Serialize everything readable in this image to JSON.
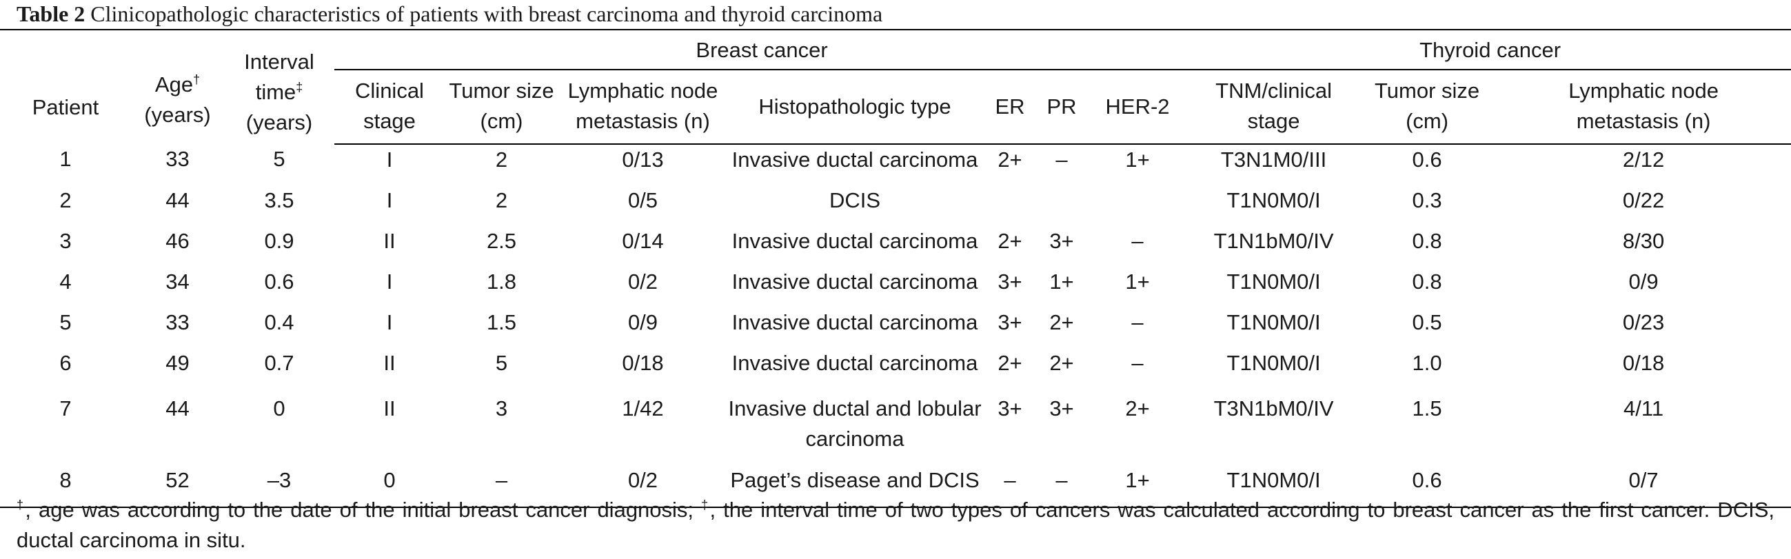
{
  "caption": {
    "label": "Table 2",
    "text": "Clinicopathologic characteristics of patients with breast carcinoma and thyroid carcinoma"
  },
  "headers": {
    "patient": "Patient",
    "age_line1": "Age",
    "age_sup": "†",
    "age_line2": "(years)",
    "interval_line1": "Interval",
    "interval_line2": "time",
    "interval_sup": "‡",
    "interval_line3": "(years)",
    "breast_group": "Breast cancer",
    "thyroid_group": "Thyroid cancer",
    "b_stage_1": "Clinical",
    "b_stage_2": "stage",
    "b_size_1": "Tumor size",
    "b_size_2": "(cm)",
    "b_lymph_1": "Lymphatic node",
    "b_lymph_2": "metastasis (n)",
    "b_histo": "Histopathologic type",
    "b_er": "ER",
    "b_pr": "PR",
    "b_her2": "HER-2",
    "t_tnm_1": "TNM/clinical",
    "t_tnm_2": "stage",
    "t_size_1": "Tumor size",
    "t_size_2": "(cm)",
    "t_lymph_1": "Lymphatic node",
    "t_lymph_2": "metastasis (n)"
  },
  "rows": [
    {
      "patient": "1",
      "age": "33",
      "interval": "5",
      "stage": "I",
      "size": "2",
      "lymph": "0/13",
      "histo": "Invasive ductal carcinoma",
      "histo2": "",
      "er": "2+",
      "pr": "–",
      "her2": "1+",
      "tnm": "T3N1M0/III",
      "t_size": "0.6",
      "t_lymph": "2/12"
    },
    {
      "patient": "2",
      "age": "44",
      "interval": "3.5",
      "stage": "I",
      "size": "2",
      "lymph": "0/5",
      "histo": "DCIS",
      "histo2": "",
      "er": "",
      "pr": "",
      "her2": "",
      "tnm": "T1N0M0/I",
      "t_size": "0.3",
      "t_lymph": "0/22"
    },
    {
      "patient": "3",
      "age": "46",
      "interval": "0.9",
      "stage": "II",
      "size": "2.5",
      "lymph": "0/14",
      "histo": "Invasive ductal carcinoma",
      "histo2": "",
      "er": "2+",
      "pr": "3+",
      "her2": "–",
      "tnm": "T1N1bM0/IV",
      "t_size": "0.8",
      "t_lymph": "8/30"
    },
    {
      "patient": "4",
      "age": "34",
      "interval": "0.6",
      "stage": "I",
      "size": "1.8",
      "lymph": "0/2",
      "histo": "Invasive ductal carcinoma",
      "histo2": "",
      "er": "3+",
      "pr": "1+",
      "her2": "1+",
      "tnm": "T1N0M0/I",
      "t_size": "0.8",
      "t_lymph": "0/9"
    },
    {
      "patient": "5",
      "age": "33",
      "interval": "0.4",
      "stage": "I",
      "size": "1.5",
      "lymph": "0/9",
      "histo": "Invasive ductal carcinoma",
      "histo2": "",
      "er": "3+",
      "pr": "2+",
      "her2": "–",
      "tnm": "T1N0M0/I",
      "t_size": "0.5",
      "t_lymph": "0/23"
    },
    {
      "patient": "6",
      "age": "49",
      "interval": "0.7",
      "stage": "II",
      "size": "5",
      "lymph": "0/18",
      "histo": "Invasive ductal carcinoma",
      "histo2": "",
      "er": "2+",
      "pr": "2+",
      "her2": "–",
      "tnm": "T1N0M0/I",
      "t_size": "1.0",
      "t_lymph": "0/18"
    },
    {
      "patient": "7",
      "age": "44",
      "interval": "0",
      "stage": "II",
      "size": "3",
      "lymph": "1/42",
      "histo": "Invasive ductal and lobular",
      "histo2": "carcinoma",
      "er": "3+",
      "pr": "3+",
      "her2": "2+",
      "tnm": "T3N1bM0/IV",
      "t_size": "1.5",
      "t_lymph": "4/11"
    },
    {
      "patient": "8",
      "age": "52",
      "interval": "–3",
      "stage": "0",
      "size": "–",
      "lymph": "0/2",
      "histo": "Paget’s disease and DCIS",
      "histo2": "",
      "er": "–",
      "pr": "–",
      "her2": "1+",
      "tnm": "T1N0M0/I",
      "t_size": "0.6",
      "t_lymph": "0/7"
    }
  ],
  "footnote": {
    "sup1": "†",
    "text1": ", age was according to the date of the initial breast cancer diagnosis;",
    "sup2": "‡",
    "text2": ", the interval time of two types of cancers was calculated according to breast cancer as the first cancer. DCIS, ductal carcinoma in situ."
  }
}
